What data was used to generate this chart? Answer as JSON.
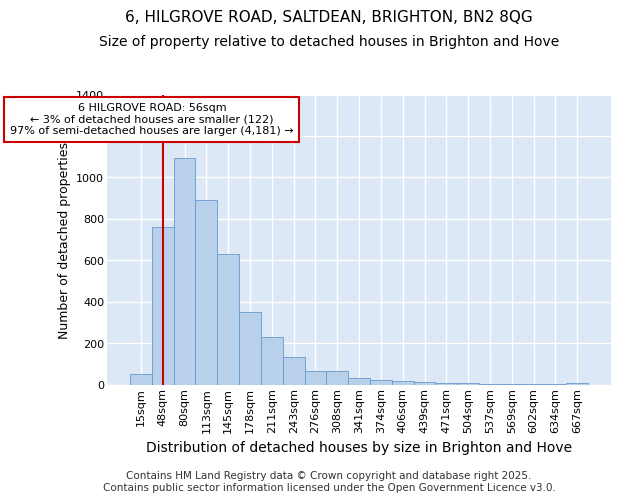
{
  "title_line1": "6, HILGROVE ROAD, SALTDEAN, BRIGHTON, BN2 8QG",
  "title_line2": "Size of property relative to detached houses in Brighton and Hove",
  "xlabel": "Distribution of detached houses by size in Brighton and Hove",
  "ylabel": "Number of detached properties",
  "categories": [
    "15sqm",
    "48sqm",
    "80sqm",
    "113sqm",
    "145sqm",
    "178sqm",
    "211sqm",
    "243sqm",
    "276sqm",
    "308sqm",
    "341sqm",
    "374sqm",
    "406sqm",
    "439sqm",
    "471sqm",
    "504sqm",
    "537sqm",
    "569sqm",
    "602sqm",
    "634sqm",
    "667sqm"
  ],
  "bar_values": [
    50,
    760,
    1095,
    890,
    630,
    350,
    230,
    135,
    65,
    65,
    30,
    20,
    15,
    10,
    8,
    5,
    3,
    2,
    2,
    1,
    5
  ],
  "bar_color": "#b8d0ea",
  "bar_edge_color": "#6699cc",
  "vline_x_idx": 1,
  "vline_color": "#cc0000",
  "annotation_text": "6 HILGROVE ROAD: 56sqm\n← 3% of detached houses are smaller (122)\n97% of semi-detached houses are larger (4,181) →",
  "annotation_box_facecolor": "#ffffff",
  "annotation_box_edgecolor": "#cc0000",
  "ylim": [
    0,
    1400
  ],
  "yticks": [
    0,
    200,
    400,
    600,
    800,
    1000,
    1200,
    1400
  ],
  "plot_bg_color": "#dce8f5",
  "fig_bg_color": "#ffffff",
  "grid_color": "#ffffff",
  "footer": "Contains HM Land Registry data © Crown copyright and database right 2025.\nContains public sector information licensed under the Open Government Licence v3.0.",
  "title_fontsize": 11,
  "subtitle_fontsize": 10,
  "ylabel_fontsize": 9,
  "xlabel_fontsize": 10,
  "tick_fontsize": 8,
  "annotation_fontsize": 8,
  "footer_fontsize": 7.5
}
